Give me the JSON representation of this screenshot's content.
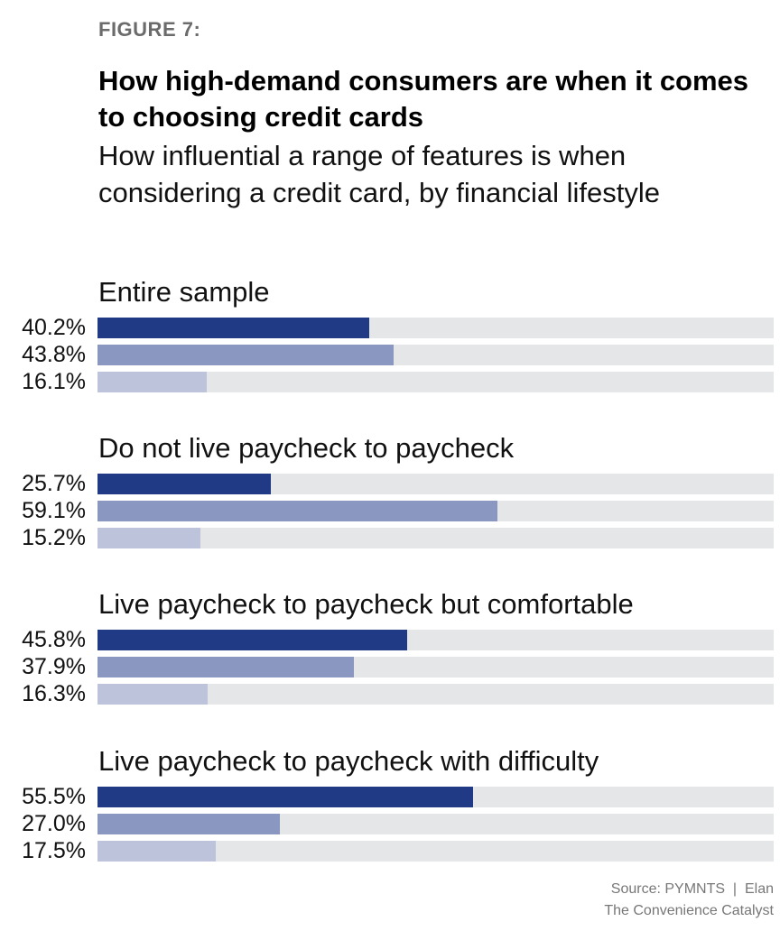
{
  "figure_label": "FIGURE 7:",
  "chart_data": {
    "type": "bar",
    "orientation": "horizontal",
    "title": "How high-demand consumers are when it comes to choosing credit cards",
    "subtitle": "How influential a range of features is when considering a credit card, by financial lifestyle",
    "xlim": [
      0,
      100
    ],
    "unit": "%",
    "grid": false,
    "legend": "none",
    "series_colors": [
      "#213a85",
      "#8a97c0",
      "#bcc3db"
    ],
    "track_color": "#e5e6e8",
    "groups": [
      {
        "label": "Entire sample",
        "values": [
          40.2,
          43.8,
          16.1
        ],
        "labels": [
          "40.2%",
          "43.8%",
          "16.1%"
        ]
      },
      {
        "label": "Do not live paycheck to paycheck",
        "values": [
          25.7,
          59.1,
          15.2
        ],
        "labels": [
          "25.7%",
          "59.1%",
          "15.2%"
        ]
      },
      {
        "label": "Live paycheck to paycheck but comfortable",
        "values": [
          45.8,
          37.9,
          16.3
        ],
        "labels": [
          "45.8%",
          "37.9%",
          "16.3%"
        ]
      },
      {
        "label": "Live paycheck to paycheck with difficulty",
        "values": [
          55.5,
          27.0,
          17.5
        ],
        "labels": [
          "55.5%",
          "27.0%",
          "17.5%"
        ]
      }
    ]
  },
  "source": {
    "line1": "Source: PYMNTS  |  Elan",
    "line2": "The Convenience Catalyst"
  }
}
